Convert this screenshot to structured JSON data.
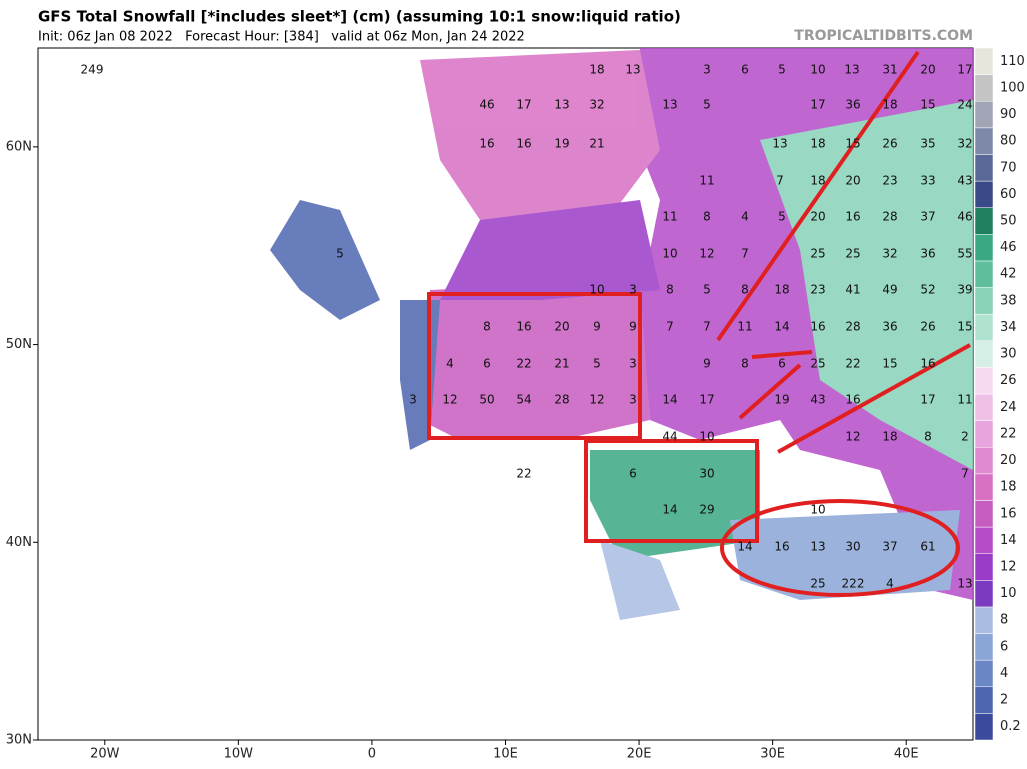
{
  "header": {
    "title": "GFS Total Snowfall [*includes sleet*] (cm) (assuming 10:1 snow:liquid ratio)",
    "subtitle": "Init: 06z Jan 08 2022   Forecast Hour: [384]   valid at 06z Mon, Jan 24 2022",
    "source": "TROPICALTIDBITS.COM"
  },
  "map": {
    "xlim": [
      -25,
      45
    ],
    "ylim": [
      30,
      65
    ],
    "xticks": [
      {
        "value": -20,
        "label": "20W"
      },
      {
        "value": -10,
        "label": "10W"
      },
      0,
      {
        "value": 10,
        "label": "10E"
      },
      {
        "value": 20,
        "label": "20E"
      },
      {
        "value": 30,
        "label": "30E"
      },
      {
        "value": 40,
        "label": "40E"
      }
    ],
    "yticks": [
      {
        "value": 30,
        "label": "30N"
      },
      {
        "value": 40,
        "label": "40N"
      },
      {
        "value": 50,
        "label": "50N"
      },
      {
        "value": 60,
        "label": "60N"
      }
    ],
    "point_labels": [
      249,
      18,
      13,
      3,
      6,
      5,
      10,
      13,
      31,
      20,
      17,
      46,
      17,
      13,
      32,
      13,
      5,
      17,
      36,
      18,
      15,
      24,
      16,
      16,
      19,
      21,
      13,
      18,
      15,
      26,
      35,
      32,
      11,
      7,
      18,
      20,
      23,
      33,
      43,
      11,
      8,
      4,
      5,
      20,
      16,
      28,
      37,
      46,
      5,
      10,
      12,
      7,
      25,
      25,
      32,
      36,
      55,
      10,
      3,
      8,
      5,
      8,
      18,
      23,
      41,
      49,
      52,
      39,
      8,
      16,
      20,
      9,
      9,
      7,
      7,
      11,
      14,
      16,
      28,
      36,
      26,
      15,
      4,
      6,
      22,
      21,
      5,
      3,
      9,
      8,
      6,
      25,
      22,
      15,
      16,
      3,
      12,
      50,
      54,
      28,
      12,
      3,
      14,
      17,
      19,
      43,
      16,
      17,
      11,
      44,
      10,
      12,
      18,
      8,
      2,
      22,
      6,
      30,
      7,
      14,
      29,
      10,
      14,
      16,
      13,
      30,
      37,
      61,
      25,
      222,
      4,
      13
    ]
  },
  "colorbar": {
    "levels": [
      0.2,
      2,
      4,
      6,
      8,
      10,
      12,
      14,
      16,
      18,
      20,
      22,
      24,
      26,
      30,
      34,
      38,
      42,
      46,
      50,
      60,
      70,
      80,
      90,
      100,
      110
    ],
    "colors": [
      "#3b4a9c",
      "#4e66b0",
      "#6a86c4",
      "#8aa6d6",
      "#a9bde2",
      "#7c3ac0",
      "#9b3cc8",
      "#b64cc8",
      "#c75cbf",
      "#d870c4",
      "#e08ad0",
      "#e8a4dc",
      "#efc0e6",
      "#f6daf0",
      "#d6efe6",
      "#b0e2d0",
      "#88d2b8",
      "#5fbf9c",
      "#3aa882",
      "#1f7f5e",
      "#3a4a88",
      "#5a6898",
      "#7e88a8",
      "#a0a4b4",
      "#c4c4c4",
      "#e6e6da"
    ]
  }
}
